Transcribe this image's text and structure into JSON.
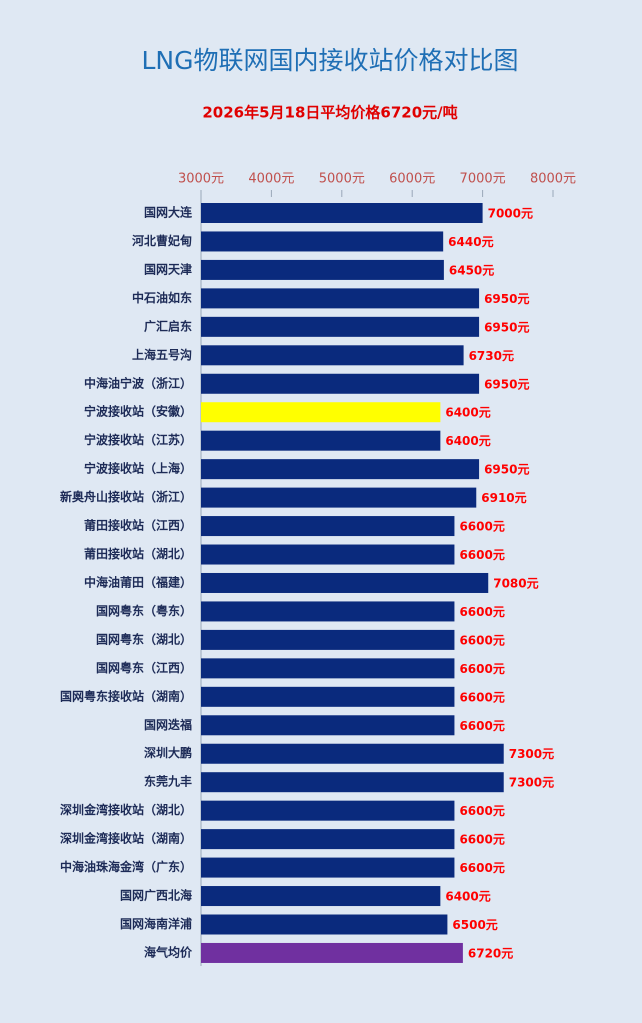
{
  "chart_data": {
    "type": "bar",
    "orientation": "horizontal",
    "title": "LNG物联网国内接收站价格对比图",
    "subtitle": "2026年5月18日平均价格6720元/吨",
    "categories": [
      "国网大连",
      "河北曹妃甸",
      "国网天津",
      "中石油如东",
      "广汇启东",
      "上海五号沟",
      "中海油宁波（浙江）",
      "宁波接收站（安徽）",
      "宁波接收站（江苏）",
      "宁波接收站（上海）",
      "新奥舟山接收站（浙江）",
      "莆田接收站（江西）",
      "莆田接收站（湖北）",
      "中海油莆田（福建）",
      "国网粤东（粤东）",
      "国网粤东（湖北）",
      "国网粤东（江西）",
      "国网粤东接收站（湖南）",
      "国网迭福",
      "深圳大鹏",
      "东莞九丰",
      "深圳金湾接收站（湖北）",
      "深圳金湾接收站（湖南）",
      "中海油珠海金湾（广东）",
      "国网广西北海",
      "国网海南洋浦",
      "海气均价"
    ],
    "values": [
      7000,
      6440,
      6450,
      6950,
      6950,
      6730,
      6950,
      6400,
      6400,
      6950,
      6910,
      6600,
      6600,
      7080,
      6600,
      6600,
      6600,
      6600,
      6600,
      7300,
      7300,
      6600,
      6600,
      6600,
      6400,
      6500,
      6720
    ],
    "value_labels": [
      "7000元",
      "6440元",
      "6450元",
      "6950元",
      "6950元",
      "6730元",
      "6950元",
      "6400元",
      "6400元",
      "6950元",
      "6910元",
      "6600元",
      "6600元",
      "7080元",
      "6600元",
      "6600元",
      "6600元",
      "6600元",
      "6600元",
      "7300元",
      "7300元",
      "6600元",
      "6600元",
      "6600元",
      "6400元",
      "6500元",
      "6720元"
    ],
    "colors": [
      "#0a2a7d",
      "#0a2a7d",
      "#0a2a7d",
      "#0a2a7d",
      "#0a2a7d",
      "#0a2a7d",
      "#0a2a7d",
      "#ffff00",
      "#0a2a7d",
      "#0a2a7d",
      "#0a2a7d",
      "#0a2a7d",
      "#0a2a7d",
      "#0a2a7d",
      "#0a2a7d",
      "#0a2a7d",
      "#0a2a7d",
      "#0a2a7d",
      "#0a2a7d",
      "#0a2a7d",
      "#0a2a7d",
      "#0a2a7d",
      "#0a2a7d",
      "#0a2a7d",
      "#0a2a7d",
      "#0a2a7d",
      "#7030a0"
    ],
    "xlim": [
      3000,
      8000
    ],
    "xticks": [
      {
        "value": 3000,
        "label": "3000元"
      },
      {
        "value": 4000,
        "label": "4000元"
      },
      {
        "value": 5000,
        "label": "5000元"
      },
      {
        "value": 6000,
        "label": "6000元"
      },
      {
        "value": 7000,
        "label": "7000元"
      },
      {
        "value": 8000,
        "label": "8000元"
      }
    ]
  }
}
